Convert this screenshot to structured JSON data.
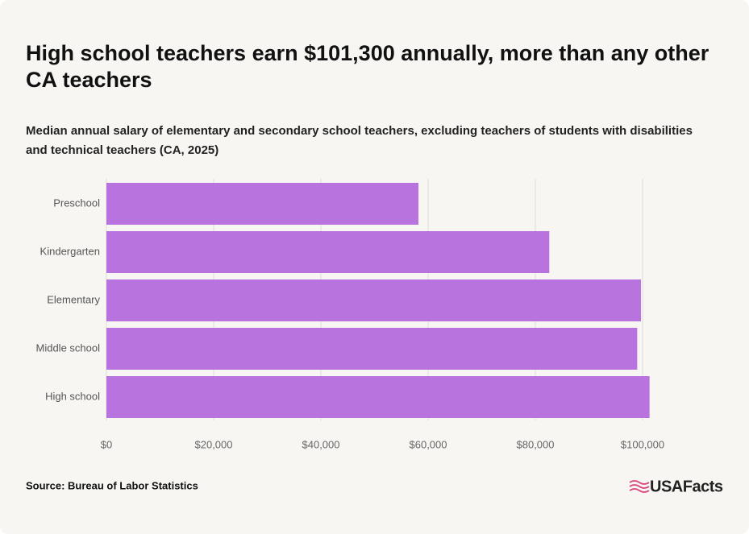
{
  "chart_data": {
    "type": "hbar",
    "title": "High school teachers earn $101,300 annually, more than any other CA teachers",
    "subtitle": "Median annual salary of elementary and secondary school teachers, excluding teachers of students with disabilities and technical teachers (CA, 2025)",
    "categories": [
      "Preschool",
      "Kindergarten",
      "Elementary",
      "Middle school",
      "High school"
    ],
    "values": [
      58200,
      82600,
      99700,
      99000,
      101300
    ],
    "color": "#b873de",
    "xlim": [
      0,
      110000
    ],
    "xticks": [
      {
        "value": 0,
        "label": "$0"
      },
      {
        "value": 20000,
        "label": "$20,000"
      },
      {
        "value": 40000,
        "label": "$40,000"
      },
      {
        "value": 60000,
        "label": "$60,000"
      },
      {
        "value": 80000,
        "label": "$80,000"
      },
      {
        "value": 100000,
        "label": "$100,000"
      }
    ],
    "grid": true,
    "source": "Source: Bureau of Labor Statistics",
    "brand": "USAFacts"
  }
}
